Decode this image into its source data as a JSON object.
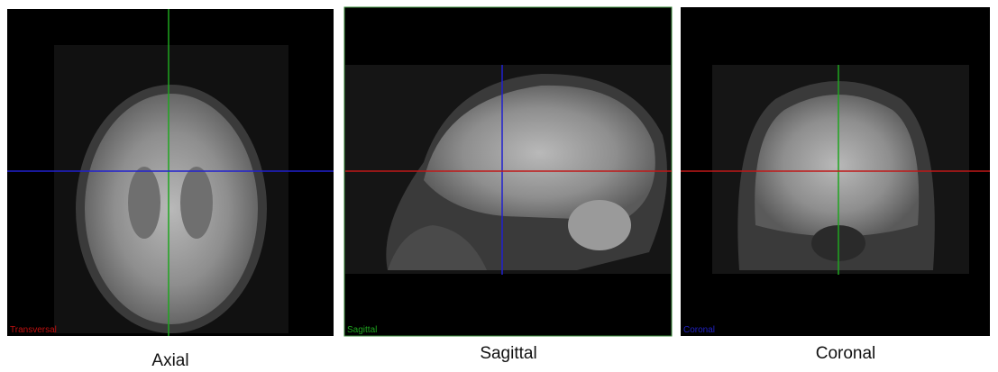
{
  "panels": [
    {
      "corner_label": "Transversal",
      "caption": "Axial"
    },
    {
      "corner_label": "Sagittal",
      "caption": "Sagittal"
    },
    {
      "corner_label": "Coronal",
      "caption": "Coronal"
    }
  ]
}
